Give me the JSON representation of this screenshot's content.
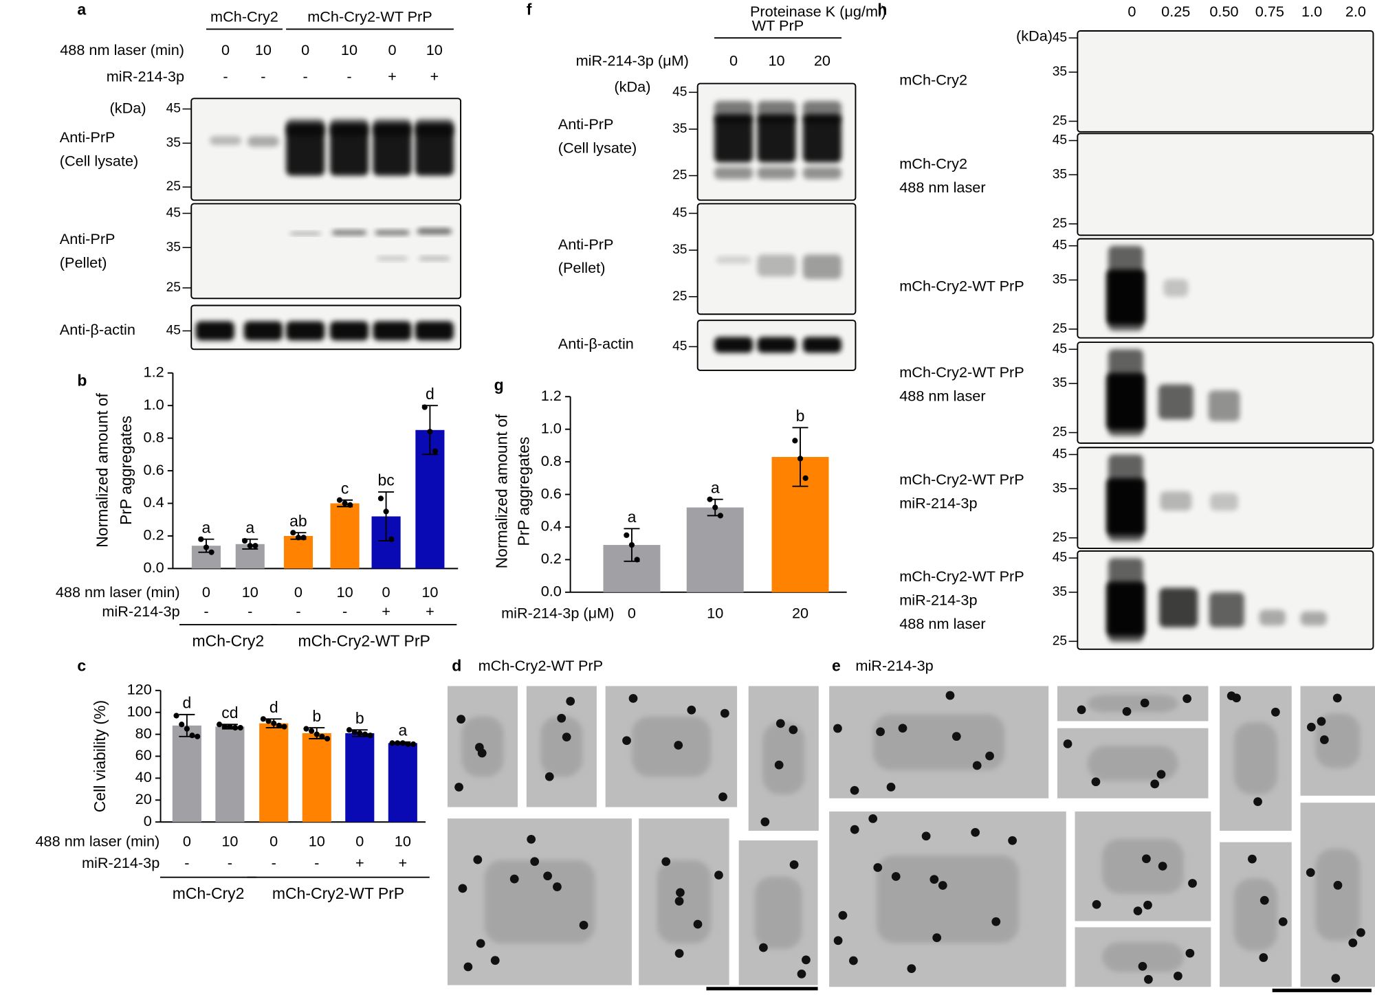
{
  "panels": {
    "a": {
      "label": "a",
      "groups": [
        {
          "name": "mCh-Cry2",
          "count": 2
        },
        {
          "name": "mCh-Cry2-WT PrP",
          "count": 4
        }
      ],
      "rows": [
        {
          "label": "488 nm laser (min)",
          "values": [
            "0",
            "10",
            "0",
            "10",
            "0",
            "10"
          ]
        },
        {
          "label": "miR-214-3p",
          "values": [
            "-",
            "-",
            "-",
            "-",
            "+",
            "+"
          ]
        }
      ],
      "unit": "(kDa)",
      "blots": [
        {
          "label": [
            "Anti-PrP",
            "(Cell lysate)"
          ],
          "markers": [
            45,
            35,
            25
          ]
        },
        {
          "label": [
            "Anti-PrP",
            "(Pellet)"
          ],
          "markers": [
            45,
            35,
            25
          ]
        },
        {
          "label": [
            "Anti-β-actin"
          ],
          "markers": [
            45
          ]
        }
      ]
    },
    "f": {
      "label": "f",
      "groups": [
        {
          "name": "WT PrP",
          "count": 3
        }
      ],
      "rows": [
        {
          "label": "miR-214-3p (μM)",
          "values": [
            "0",
            "10",
            "20"
          ]
        }
      ],
      "unit": "(kDa)",
      "blots": [
        {
          "label": [
            "Anti-PrP",
            "(Cell lysate)"
          ],
          "markers": [
            45,
            35,
            25
          ]
        },
        {
          "label": [
            "Anti-PrP",
            "(Pellet)"
          ],
          "markers": [
            45,
            35,
            25
          ]
        },
        {
          "label": [
            "Anti-β-actin"
          ],
          "markers": [
            45
          ]
        }
      ]
    },
    "h": {
      "label": "h",
      "rows": [
        {
          "label": "Proteinase K (μg/ml)",
          "values": [
            "0",
            "0.25",
            "0.50",
            "0.75",
            "1.0",
            "2.0"
          ]
        }
      ],
      "unit": "(kDa)",
      "blots": [
        {
          "label": [
            "mCh-Cry2"
          ],
          "markers": [
            45,
            35,
            25
          ]
        },
        {
          "label": [
            "mCh-Cry2",
            "488 nm laser"
          ],
          "markers": [
            45,
            35,
            25
          ]
        },
        {
          "label": [
            "mCh-Cry2-WT PrP"
          ],
          "markers": [
            45,
            35,
            25
          ]
        },
        {
          "label": [
            "mCh-Cry2-WT PrP",
            "488 nm laser"
          ],
          "markers": [
            45,
            35,
            25
          ]
        },
        {
          "label": [
            "mCh-Cry2-WT PrP",
            "miR-214-3p"
          ],
          "markers": [
            45,
            35,
            25
          ]
        },
        {
          "label": [
            "mCh-Cry2-WT PrP",
            "miR-214-3p",
            "488 nm laser"
          ],
          "markers": [
            45,
            35,
            25
          ]
        }
      ]
    },
    "d": {
      "label": "d",
      "title": "mCh-Cry2-WT PrP"
    },
    "e": {
      "label": "e",
      "title": "miR-214-3p"
    }
  },
  "chart_data": [
    {
      "type": "bar",
      "panel": "b",
      "ylabel": [
        "Normalized amount of",
        "PrP aggregates"
      ],
      "xlabel": "488 nm laser (min)",
      "categories": [
        "0",
        "10",
        "0",
        "10",
        "0",
        "10"
      ],
      "rows": [
        {
          "label": "miR-214-3p",
          "values": [
            "-",
            "-",
            "-",
            "-",
            "+",
            "+"
          ]
        }
      ],
      "groups": [
        {
          "name": "mCh-Cry2",
          "count": 2
        },
        {
          "name": "mCh-Cry2-WT PrP",
          "count": 4
        }
      ],
      "values": [
        0.14,
        0.15,
        0.2,
        0.4,
        0.32,
        0.85
      ],
      "errors": [
        0.04,
        0.03,
        0.02,
        0.02,
        0.15,
        0.15
      ],
      "points": [
        [
          0.18,
          0.13,
          0.1
        ],
        [
          0.17,
          0.14,
          0.14
        ],
        [
          0.22,
          0.19,
          0.19
        ],
        [
          0.42,
          0.4,
          0.39
        ],
        [
          0.43,
          0.35,
          0.18
        ],
        [
          0.99,
          0.84,
          0.72
        ]
      ],
      "colors": [
        "#a0a0a5",
        "#a0a0a5",
        "#ff8200",
        "#ff8200",
        "#0a0ab4",
        "#0a0ab4"
      ],
      "annotations": [
        "a",
        "a",
        "ab",
        "c",
        "bc",
        "d"
      ],
      "ylim": [
        0,
        1.2
      ],
      "yticks": [
        {
          "value": 0,
          "label": "0.0"
        },
        0.2,
        0.4,
        0.6,
        0.8,
        {
          "value": 1,
          "label": "1.0"
        },
        1.2
      ]
    },
    {
      "type": "bar",
      "panel": "c",
      "ylabel": [
        "Cell viability (%)"
      ],
      "xlabel": "488 nm laser (min)",
      "categories": [
        "0",
        "10",
        "0",
        "10",
        "0",
        "10"
      ],
      "rows": [
        {
          "label": "miR-214-3p",
          "values": [
            "-",
            "-",
            "-",
            "-",
            "+",
            "+"
          ]
        }
      ],
      "groups": [
        {
          "name": "mCh-Cry2",
          "count": 2
        },
        {
          "name": "mCh-Cry2-WT PrP",
          "count": 4
        }
      ],
      "values": [
        88,
        87,
        90,
        81,
        81,
        72
      ],
      "errors": [
        10,
        2,
        4,
        5,
        3,
        1
      ],
      "points": [
        [
          97,
          89,
          85,
          79,
          78
        ],
        [
          89,
          87,
          87,
          86,
          86
        ],
        [
          94,
          92,
          90,
          88,
          87
        ],
        [
          85,
          83,
          80,
          78,
          76
        ],
        [
          84,
          82,
          81,
          80,
          79
        ],
        [
          72,
          72,
          72,
          71,
          71
        ]
      ],
      "colors": [
        "#a0a0a5",
        "#a0a0a5",
        "#ff8200",
        "#ff8200",
        "#0a0ab4",
        "#0a0ab4"
      ],
      "annotations": [
        "d",
        "cd",
        "d",
        "b",
        "b",
        "a"
      ],
      "ylim": [
        0,
        120
      ],
      "yticks": [
        0,
        20,
        40,
        60,
        80,
        100,
        120
      ]
    },
    {
      "type": "bar",
      "panel": "g",
      "ylabel": [
        "Normalized amount of",
        "PrP aggregates"
      ],
      "xlabel": "miR-214-3p (μM)",
      "categories": [
        "0",
        "10",
        "20"
      ],
      "values": [
        0.29,
        0.52,
        0.83
      ],
      "errors": [
        0.1,
        0.05,
        0.18
      ],
      "points": [
        [
          0.35,
          0.29,
          0.2
        ],
        [
          0.57,
          0.52,
          0.47
        ],
        [
          0.93,
          0.82,
          0.7
        ]
      ],
      "colors": [
        "#a0a0a5",
        "#a0a0a5",
        "#ff8200"
      ],
      "annotations": [
        "a",
        "a",
        "b"
      ],
      "ylim": [
        0,
        1.2
      ],
      "yticks": [
        {
          "value": 0,
          "label": "0.0"
        },
        0.2,
        0.4,
        0.6,
        0.8,
        {
          "value": 1,
          "label": "1.0"
        },
        1.2
      ]
    }
  ]
}
